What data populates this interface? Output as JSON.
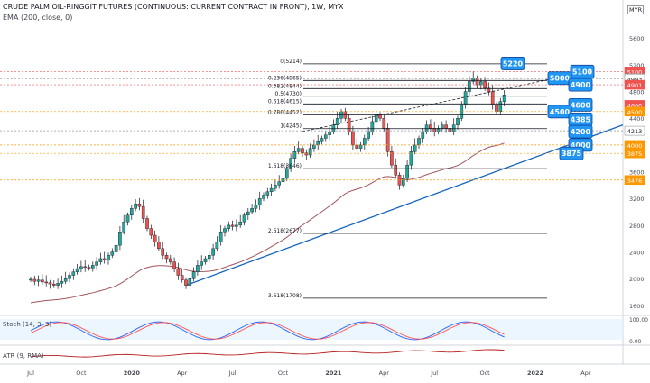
{
  "header": {
    "title": "CRUDE PALM OIL-RINGGIT FUTURES (CONTINUOUS: CURRENT CONTRACT IN FRONT), 1W, MYX",
    "indicator": "EMA (200, close, 0)",
    "axis_unit": "MYR"
  },
  "panes": {
    "stoch_label": "Stoch (14, 3, 3)",
    "atr_label": "ATR (9, RMA)"
  },
  "colors": {
    "up": "#26a69a",
    "down": "#ef5350",
    "trend": "#1565c0",
    "ema": "#a0555a",
    "callout": "#2196f3",
    "badge_red": "#ef5350",
    "badge_orange": "#ff9800",
    "fib": "#131722"
  },
  "chart_data": {
    "type": "candlestick",
    "title": "CRUDE PALM OIL-RINGGIT FUTURES (CONTINUOUS: CURRENT CONTRACT IN FRONT), 1W, MYX",
    "ylim": [
      1450,
      5900
    ],
    "y_ticks": [
      "5600",
      "5200",
      "4800",
      "4400",
      "3600",
      "3200",
      "2800",
      "2400",
      "2000",
      "1600"
    ],
    "x_ticks": [
      "Jul",
      "Oct",
      "2020",
      "Apr",
      "Jul",
      "Oct",
      "2021",
      "Apr",
      "Jul",
      "Oct",
      "2022",
      "Apr"
    ],
    "x_tick_index": [
      0,
      13,
      26,
      39,
      52,
      65,
      78,
      91,
      104,
      117,
      130,
      143
    ],
    "weekly_close_approx": [
      1990,
      1960,
      1980,
      1950,
      1940,
      1920,
      1900,
      1930,
      1960,
      2000,
      2050,
      2100,
      2150,
      2180,
      2170,
      2160,
      2200,
      2250,
      2300,
      2280,
      2350,
      2400,
      2500,
      2700,
      2850,
      2950,
      3050,
      3120,
      3080,
      2900,
      2750,
      2650,
      2550,
      2450,
      2350,
      2300,
      2250,
      2150,
      2050,
      1980,
      1900,
      2000,
      2100,
      2200,
      2250,
      2300,
      2350,
      2450,
      2550,
      2700,
      2750,
      2800,
      2780,
      2800,
      2850,
      2950,
      3000,
      3050,
      3100,
      3200,
      3250,
      3300,
      3350,
      3400,
      3450,
      3500,
      3650,
      3800,
      3900,
      3950,
      3880,
      3850,
      3950,
      4000,
      4050,
      4100,
      4150,
      4200,
      4300,
      4400,
      4500,
      4400,
      4200,
      4000,
      3950,
      4000,
      4100,
      4200,
      4350,
      4450,
      4400,
      4250,
      3900,
      3700,
      3550,
      3400,
      3500,
      3700,
      3900,
      4000,
      4100,
      4200,
      4300,
      4250,
      4200,
      4250,
      4300,
      4250,
      4200,
      4300,
      4400,
      4600,
      4800,
      4950,
      5000,
      4900,
      4950,
      4850,
      4800,
      4600,
      4500,
      4650,
      4750
    ],
    "fibonacci": [
      {
        "label": "0(5214)",
        "value": 5214
      },
      {
        "label": "0.236(4965)",
        "value": 4965
      },
      {
        "label": "0.382(4844)",
        "value": 4844
      },
      {
        "label": "0.5(4730)",
        "value": 4730
      },
      {
        "label": "0.618(4615)",
        "value": 4615
      },
      {
        "label": "0.786(4452)",
        "value": 4452
      },
      {
        "label": "1(4245)",
        "value": 4245
      },
      {
        "label": "1.618(3646)",
        "value": 3646
      },
      {
        "label": "2.618(2677)",
        "value": 2677
      },
      {
        "label": "3.618(1708)",
        "value": 1708
      }
    ],
    "callouts": [
      {
        "label": "5220",
        "value": 5220
      },
      {
        "label": "5100",
        "value": 5100
      },
      {
        "label": "5000",
        "value": 5000
      },
      {
        "label": "4900",
        "value": 4900
      },
      {
        "label": "4600",
        "value": 4600
      },
      {
        "label": "4500",
        "value": 4500
      },
      {
        "label": "4385",
        "value": 4385
      },
      {
        "label": "4200",
        "value": 4200
      },
      {
        "label": "4000",
        "value": 4000
      },
      {
        "label": "3875",
        "value": 3875
      }
    ],
    "price_badges": [
      {
        "label": "5100",
        "value": 5100,
        "style": "red"
      },
      {
        "label": "4999",
        "value": 4999,
        "style": "white"
      },
      {
        "label": "4993",
        "value": 4993,
        "style": "white"
      },
      {
        "label": "4901",
        "value": 4901,
        "style": "red"
      },
      {
        "label": "4600",
        "value": 4600,
        "style": "red"
      },
      {
        "label": "4500",
        "value": 4500,
        "style": "orange"
      },
      {
        "label": "4213",
        "value": 4213,
        "style": "white"
      },
      {
        "label": "4000",
        "value": 4000,
        "style": "orange"
      },
      {
        "label": "3875",
        "value": 3875,
        "style": "orange"
      },
      {
        "label": "3476",
        "value": 3476,
        "style": "orange"
      }
    ],
    "stoch_ticks": [
      "100.00",
      "0.00"
    ]
  }
}
